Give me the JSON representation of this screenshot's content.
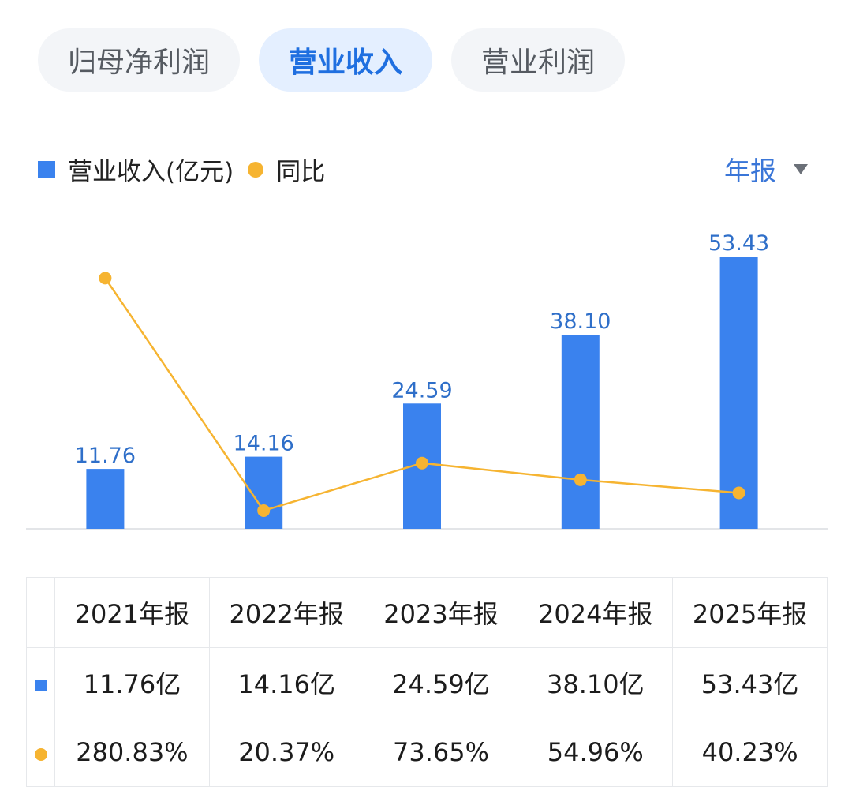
{
  "tabs": [
    {
      "label": "归母净利润",
      "active": false
    },
    {
      "label": "营业收入",
      "active": true
    },
    {
      "label": "营业利润",
      "active": false
    }
  ],
  "legend": {
    "bar_label": "营业收入(亿元)",
    "line_label": "同比"
  },
  "period_selector": "年报",
  "colors": {
    "bar": "#3a82ee",
    "line": "#f6b431",
    "bar_label": "#2f6fc9",
    "pct_text": "#d9433f",
    "tab_active": "#1f6fe0"
  },
  "chart_data": {
    "type": "bar",
    "categories": [
      "2021年报",
      "2022年报",
      "2023年报",
      "2024年报",
      "2025年报"
    ],
    "series": [
      {
        "name": "营业收入(亿元)",
        "type": "bar",
        "values": [
          11.76,
          14.16,
          24.59,
          38.1,
          53.43
        ],
        "labels": [
          "11.76",
          "14.16",
          "24.59",
          "38.10",
          "53.43"
        ]
      },
      {
        "name": "同比",
        "type": "line",
        "values": [
          280.83,
          20.37,
          73.65,
          54.96,
          40.23
        ]
      }
    ],
    "xlabel": "",
    "ylabel": "",
    "grid": false
  },
  "table": {
    "headers": [
      "2021年报",
      "2022年报",
      "2023年报",
      "2024年报",
      "2025年报"
    ],
    "revenue_row": [
      "11.76亿",
      "14.16亿",
      "24.59亿",
      "38.10亿",
      "53.43亿"
    ],
    "yoy_row": [
      "280.83%",
      "20.37%",
      "73.65%",
      "54.96%",
      "40.23%"
    ]
  }
}
